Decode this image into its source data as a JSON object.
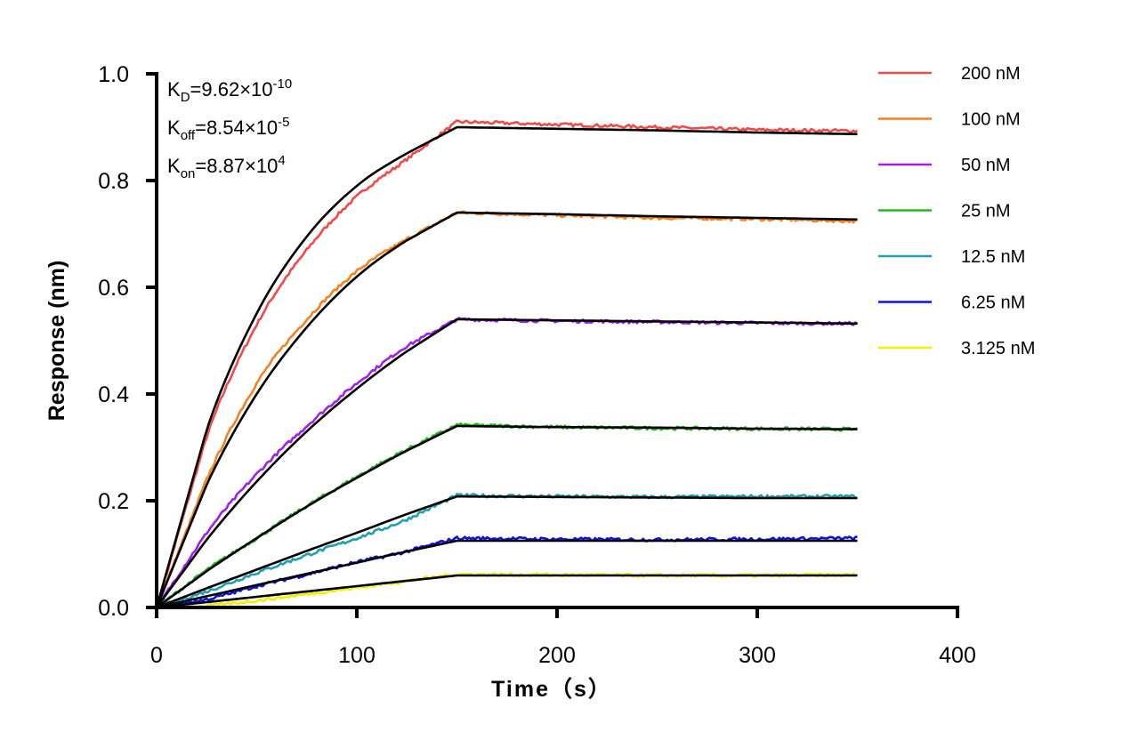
{
  "chart_data": {
    "type": "line",
    "xlabel": "Time（s）",
    "ylabel": "Response (nm)",
    "xlim": [
      0,
      400
    ],
    "ylim": [
      0,
      1.0
    ],
    "xticks": [
      "0",
      "100",
      "200",
      "300",
      "400"
    ],
    "yticks": [
      "0.0",
      "0.2",
      "0.4",
      "0.6",
      "0.8",
      "1.0"
    ],
    "grid": false,
    "legend_position": "right",
    "annotations": {
      "kd": {
        "label": "K",
        "sub": "D",
        "value": "=9.62×10",
        "exp": "-10"
      },
      "koff": {
        "label": "K",
        "sub": "off",
        "value": "=8.54×10",
        "exp": "-5"
      },
      "kon": {
        "label": "K",
        "sub": "on",
        "value": "=8.87×10",
        "exp": "4"
      }
    },
    "x": [
      0,
      25,
      50,
      75,
      100,
      125,
      150,
      200,
      250,
      300,
      350
    ],
    "fit_color": "#000000",
    "series": [
      {
        "name": "200 nM",
        "color": "#f04a4a",
        "values": [
          0,
          0.32,
          0.53,
          0.67,
          0.77,
          0.84,
          0.91,
          0.905,
          0.9,
          0.895,
          0.893
        ],
        "fit": [
          0,
          0.333,
          0.551,
          0.695,
          0.79,
          0.851,
          0.9,
          0.897,
          0.894,
          0.89,
          0.887
        ]
      },
      {
        "name": "100 nM",
        "color": "#f58220",
        "values": [
          0,
          0.24,
          0.42,
          0.54,
          0.63,
          0.69,
          0.74,
          0.735,
          0.73,
          0.728,
          0.724
        ],
        "fit": [
          0,
          0.23,
          0.4,
          0.525,
          0.62,
          0.688,
          0.74,
          0.737,
          0.733,
          0.73,
          0.727
        ]
      },
      {
        "name": "50 nM",
        "color": "#a020f0",
        "values": [
          0,
          0.14,
          0.25,
          0.34,
          0.42,
          0.49,
          0.54,
          0.537,
          0.535,
          0.533,
          0.532
        ],
        "fit": [
          0,
          0.127,
          0.236,
          0.33,
          0.41,
          0.48,
          0.54,
          0.538,
          0.536,
          0.534,
          0.532
        ]
      },
      {
        "name": "25 nM",
        "color": "#22b822",
        "values": [
          0,
          0.07,
          0.13,
          0.19,
          0.245,
          0.296,
          0.342,
          0.338,
          0.336,
          0.335,
          0.334
        ],
        "fit": [
          0,
          0.068,
          0.13,
          0.189,
          0.243,
          0.294,
          0.34,
          0.338,
          0.337,
          0.335,
          0.334
        ]
      },
      {
        "name": "12.5 nM",
        "color": "#1f9fb0",
        "values": [
          0,
          0.03,
          0.065,
          0.098,
          0.13,
          0.165,
          0.21,
          0.208,
          0.207,
          0.208,
          0.208
        ],
        "fit": [
          0,
          0.036,
          0.071,
          0.106,
          0.14,
          0.175,
          0.208,
          0.207,
          0.206,
          0.205,
          0.205
        ]
      },
      {
        "name": "6.25 nM",
        "color": "#1010e0",
        "values": [
          0,
          0.015,
          0.04,
          0.062,
          0.085,
          0.105,
          0.13,
          0.128,
          0.127,
          0.128,
          0.13
        ],
        "fit": [
          0,
          0.021,
          0.042,
          0.063,
          0.084,
          0.105,
          0.125,
          0.125,
          0.125,
          0.125,
          0.125
        ]
      },
      {
        "name": "3.125 nM",
        "color": "#f0f000",
        "values": [
          0,
          0.003,
          0.013,
          0.025,
          0.037,
          0.05,
          0.062,
          0.061,
          0.06,
          0.06,
          0.061
        ],
        "fit": [
          0,
          0.01,
          0.02,
          0.03,
          0.04,
          0.05,
          0.06,
          0.06,
          0.06,
          0.06,
          0.06
        ]
      }
    ]
  }
}
